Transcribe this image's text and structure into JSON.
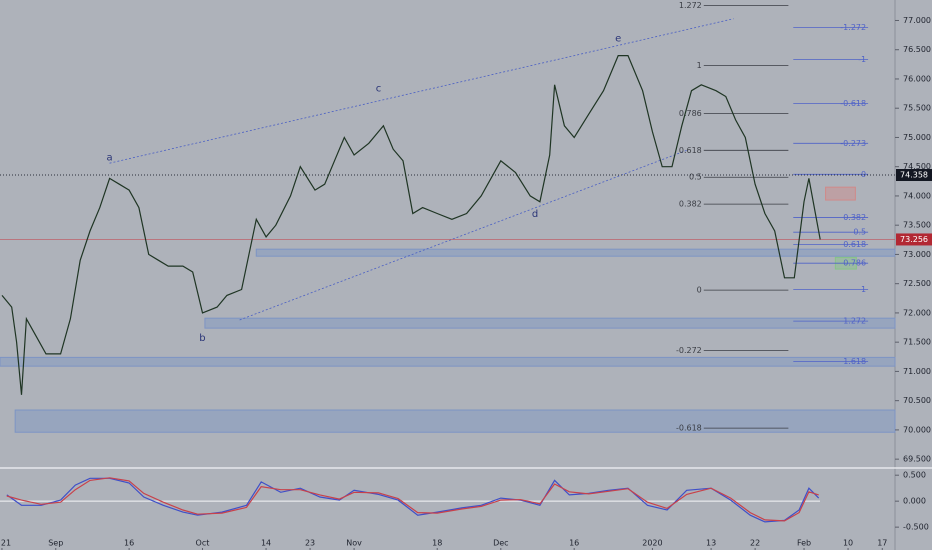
{
  "chart_data": [
    {
      "type": "line",
      "color": "#1f3524",
      "x": [
        0,
        2,
        3,
        4,
        5,
        7,
        9,
        12,
        14,
        16,
        18,
        20,
        22,
        24,
        26,
        28,
        30,
        32,
        34,
        37,
        39,
        41,
        44,
        46,
        49,
        52,
        54,
        56,
        59,
        61,
        64,
        66,
        68,
        70,
        72,
        75,
        78,
        80,
        82,
        84,
        86,
        89,
        92,
        95,
        98,
        102,
        105,
        108,
        110,
        112,
        113,
        115,
        117,
        120,
        123,
        126,
        128,
        131,
        133,
        135,
        137,
        139,
        141,
        143,
        146,
        148,
        150,
        152,
        154,
        156,
        158,
        160,
        162,
        164,
        165,
        167.3
      ],
      "values": [
        72.3,
        72.1,
        71.5,
        70.6,
        71.9,
        71.6,
        71.3,
        71.3,
        71.9,
        72.9,
        73.4,
        73.8,
        74.3,
        74.2,
        74.1,
        73.8,
        73.0,
        72.9,
        72.8,
        72.8,
        72.7,
        72.0,
        72.1,
        72.3,
        72.4,
        73.6,
        73.3,
        73.5,
        74.0,
        74.5,
        74.1,
        74.2,
        74.6,
        75.0,
        74.7,
        74.9,
        75.2,
        74.8,
        74.6,
        73.7,
        73.8,
        73.7,
        73.6,
        73.7,
        74.0,
        74.6,
        74.4,
        74.0,
        73.9,
        74.7,
        75.9,
        75.2,
        75.0,
        75.4,
        75.8,
        76.4,
        76.4,
        75.8,
        75.1,
        74.5,
        74.5,
        75.2,
        75.8,
        75.9,
        75.8,
        75.7,
        75.3,
        75.0,
        74.2,
        73.7,
        73.4,
        72.6,
        72.6,
        73.9,
        74.3,
        73.256
      ],
      "xlim": [
        -0.4,
        182.6
      ],
      "xticks": [
        {
          "value": 0,
          "label": "21"
        },
        {
          "value": 11,
          "label": "Sep"
        },
        {
          "value": 26,
          "label": "16"
        },
        {
          "value": 41,
          "label": "Oct"
        },
        {
          "value": 54,
          "label": "14"
        },
        {
          "value": 63,
          "label": "23"
        },
        {
          "value": 72,
          "label": "Nov"
        },
        {
          "value": 89,
          "label": "18"
        },
        {
          "value": 102,
          "label": "Dec"
        },
        {
          "value": 117,
          "label": "16"
        },
        {
          "value": 133,
          "label": "2020"
        },
        {
          "value": 145,
          "label": "13"
        },
        {
          "value": 154,
          "label": "22"
        },
        {
          "value": 164,
          "label": "Feb"
        },
        {
          "value": 173,
          "label": "10"
        },
        {
          "value": 180,
          "label": "17"
        }
      ],
      "ylim": [
        69.4,
        77.35
      ],
      "yticks": [
        {
          "value": 69.5,
          "label": "69.500"
        },
        {
          "value": 70,
          "label": "70.000"
        },
        {
          "value": 70.5,
          "label": "70.500"
        },
        {
          "value": 71,
          "label": "71.000"
        },
        {
          "value": 71.5,
          "label": "71.500"
        },
        {
          "value": 72,
          "label": "72.000"
        },
        {
          "value": 72.5,
          "label": "72.500"
        },
        {
          "value": 73,
          "label": "73.000"
        },
        {
          "value": 73.5,
          "label": "73.500"
        },
        {
          "value": 74,
          "label": "74.000"
        },
        {
          "value": 74.5,
          "label": "74.500"
        },
        {
          "value": 75,
          "label": "75.000"
        },
        {
          "value": 75.5,
          "label": "75.500"
        },
        {
          "value": 76,
          "label": "76.000"
        },
        {
          "value": 76.5,
          "label": "76.500"
        },
        {
          "value": 77,
          "label": "77.000"
        }
      ],
      "price_line": 74.358,
      "waves": [
        {
          "label": "a",
          "x": 22,
          "y": 74.66
        },
        {
          "label": "b",
          "x": 41,
          "y": 71.57
        },
        {
          "label": "c",
          "x": 77,
          "y": 75.84
        },
        {
          "label": "d",
          "x": 109,
          "y": 73.69
        },
        {
          "label": "e",
          "x": 126,
          "y": 76.69
        }
      ],
      "fib_left": {
        "x": [
          143.5,
          160.8
        ],
        "levels": [
          1.272,
          1,
          0.786,
          0.618,
          0.5,
          0.382,
          0,
          -0.272,
          -0.618
        ],
        "prices": [
          77.256,
          76.23,
          75.41,
          74.78,
          74.32,
          73.86,
          72.39,
          71.36,
          70.03
        ]
      },
      "fib_right": {
        "x": [
          161.8,
          177.1
        ],
        "levels": [
          -1.272,
          -1,
          -0.618,
          -0.273,
          0,
          0.382,
          0.5,
          0.618,
          0.786,
          1,
          1.272,
          1.618
        ],
        "prices": [
          76.88,
          76.33,
          75.58,
          74.9,
          74.37,
          73.63,
          73.38,
          73.17,
          72.85,
          72.4,
          71.86,
          71.17
        ]
      },
      "zones": [
        {
          "x": [
            52,
            182.6
          ],
          "y": [
            72.97,
            73.09
          ],
          "color": "#7d94c4"
        },
        {
          "x": [
            41.5,
            182.6
          ],
          "y": [
            71.74,
            71.91
          ],
          "color": "#7d94c4"
        },
        {
          "x": [
            -0.4,
            182.6
          ],
          "y": [
            71.09,
            71.24
          ],
          "color": "#7d94c4"
        },
        {
          "x": [
            2.7,
            182.6
          ],
          "y": [
            69.96,
            70.34
          ],
          "color": "#7d94c4"
        },
        {
          "x": [
            168.4,
            174.5
          ],
          "y": [
            73.93,
            74.15
          ],
          "color": "#d08a8a"
        },
        {
          "x": [
            170.4,
            174.7
          ],
          "y": [
            72.75,
            72.95
          ],
          "color": "#86c486"
        }
      ],
      "trendlines": [
        [
          [
            22,
            74.56
          ],
          [
            149.6,
            77.03
          ]
        ],
        [
          [
            48.6,
            71.88
          ],
          [
            140,
            74.78
          ]
        ]
      ]
    },
    {
      "type": "line",
      "x": [
        1,
        4,
        8,
        12,
        15,
        18,
        22,
        26,
        29,
        33,
        37,
        40,
        45,
        50,
        53,
        57,
        61,
        65,
        69,
        72,
        77,
        81,
        85,
        89,
        94,
        98,
        102,
        106,
        110,
        113,
        116,
        120,
        124,
        128,
        132,
        136,
        140,
        145,
        149,
        153,
        156,
        160,
        163,
        165,
        167
      ],
      "series": [
        {
          "color": "#3f4fc8",
          "values": [
            0.12,
            -0.08,
            -0.08,
            0.02,
            0.31,
            0.44,
            0.44,
            0.35,
            0.08,
            -0.08,
            -0.21,
            -0.27,
            -0.21,
            -0.08,
            0.37,
            0.17,
            0.25,
            0.08,
            0.02,
            0.21,
            0.13,
            0.02,
            -0.27,
            -0.21,
            -0.13,
            -0.08,
            0.06,
            0.02,
            -0.08,
            0.4,
            0.12,
            0.15,
            0.21,
            0.25,
            -0.08,
            -0.17,
            0.21,
            0.25,
            0.02,
            -0.27,
            -0.4,
            -0.37,
            -0.17,
            0.25,
            0.06
          ]
        },
        {
          "color": "#c8414a",
          "values": [
            0.1,
            0.02,
            -0.06,
            -0.02,
            0.22,
            0.4,
            0.45,
            0.39,
            0.15,
            -0.02,
            -0.17,
            -0.25,
            -0.23,
            -0.12,
            0.28,
            0.22,
            0.22,
            0.12,
            0.04,
            0.17,
            0.16,
            0.05,
            -0.22,
            -0.23,
            -0.15,
            -0.1,
            0.02,
            0.03,
            -0.05,
            0.33,
            0.18,
            0.14,
            0.19,
            0.24,
            -0.02,
            -0.14,
            0.13,
            0.25,
            0.06,
            -0.22,
            -0.36,
            -0.38,
            -0.22,
            0.18,
            0.12
          ]
        }
      ],
      "xlim": [
        -0.4,
        182.6
      ],
      "ylim": [
        -0.94,
        0.6
      ],
      "yticks": [
        {
          "value": 0.5,
          "label": "0.500"
        },
        {
          "value": 0,
          "label": "0.000"
        },
        {
          "value": -0.5,
          "label": "-0.500"
        }
      ]
    }
  ]
}
